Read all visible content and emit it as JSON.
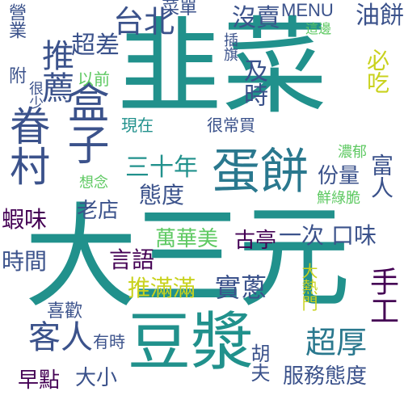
{
  "palette": {
    "dark_purple": "#440154",
    "blue": "#3b528b",
    "teal": "#21918c",
    "green": "#5ec962",
    "yellow": "#c9d21e"
  },
  "words": [
    {
      "text": "韭菜",
      "color": "#21918c"
    },
    {
      "text": "大三元",
      "color": "#21918c"
    },
    {
      "text": "豆漿",
      "color": "#21918c"
    },
    {
      "text": "蛋餅",
      "color": "#2a788e"
    },
    {
      "text": "盒子",
      "color": "#3b528b"
    },
    {
      "text": "眷村",
      "color": "#3b528b"
    },
    {
      "text": "推薦",
      "color": "#3b528b"
    },
    {
      "text": "台北",
      "color": "#3b528b"
    },
    {
      "text": "超厚",
      "color": "#2a788e"
    },
    {
      "text": "客人",
      "color": "#3b528b"
    },
    {
      "text": "實蔥",
      "color": "#3b528b"
    },
    {
      "text": "服務態度",
      "color": "#3b528b"
    },
    {
      "text": "沒賣",
      "color": "#3b528b"
    },
    {
      "text": "MENU",
      "color": "#3b528b"
    },
    {
      "text": "油餅",
      "color": "#3b528b"
    },
    {
      "text": "超差",
      "color": "#3b528b"
    },
    {
      "text": "三十年",
      "color": "#21918c"
    },
    {
      "text": "態度",
      "color": "#3b528b"
    },
    {
      "text": "份量",
      "color": "#3b528b"
    },
    {
      "text": "老店",
      "color": "#3b528b"
    },
    {
      "text": "萬華美",
      "color": "#5ec962"
    },
    {
      "text": "古亭",
      "color": "#440154"
    },
    {
      "text": "一次",
      "color": "#3b528b"
    },
    {
      "text": "口味",
      "color": "#3b528b"
    },
    {
      "text": "推滿滿",
      "color": "#c9d21e"
    },
    {
      "text": "蝦味",
      "color": "#440154"
    },
    {
      "text": "時間",
      "color": "#3b528b"
    },
    {
      "text": "言語",
      "color": "#440154"
    },
    {
      "text": "早點",
      "color": "#440154"
    },
    {
      "text": "大小",
      "color": "#3b528b"
    },
    {
      "text": "喜歡",
      "color": "#3b528b"
    },
    {
      "text": "有時",
      "color": "#3b528b"
    },
    {
      "text": "菜單",
      "color": "#3b528b"
    },
    {
      "text": "插旗",
      "color": "#3b528b"
    },
    {
      "text": "這邊",
      "color": "#5ec962"
    },
    {
      "text": "附",
      "color": "#3b528b"
    },
    {
      "text": "營業",
      "color": "#3b528b"
    },
    {
      "text": "以前",
      "color": "#5ec962"
    },
    {
      "text": "很少",
      "color": "#3b528b"
    },
    {
      "text": "及時",
      "color": "#3b528b"
    },
    {
      "text": "必吃",
      "color": "#c9d21e"
    },
    {
      "text": "現在",
      "color": "#21918c"
    },
    {
      "text": "很常買",
      "color": "#3b528b"
    },
    {
      "text": "濃郁",
      "color": "#5ec962"
    },
    {
      "text": "想念",
      "color": "#5ec962"
    },
    {
      "text": "鮮綠脆",
      "color": "#5ec962"
    },
    {
      "text": "富人",
      "color": "#3b528b"
    },
    {
      "text": "大熱門",
      "color": "#c9d21e"
    },
    {
      "text": "手工",
      "color": "#440154"
    },
    {
      "text": "胡夫",
      "color": "#3b528b"
    }
  ]
}
